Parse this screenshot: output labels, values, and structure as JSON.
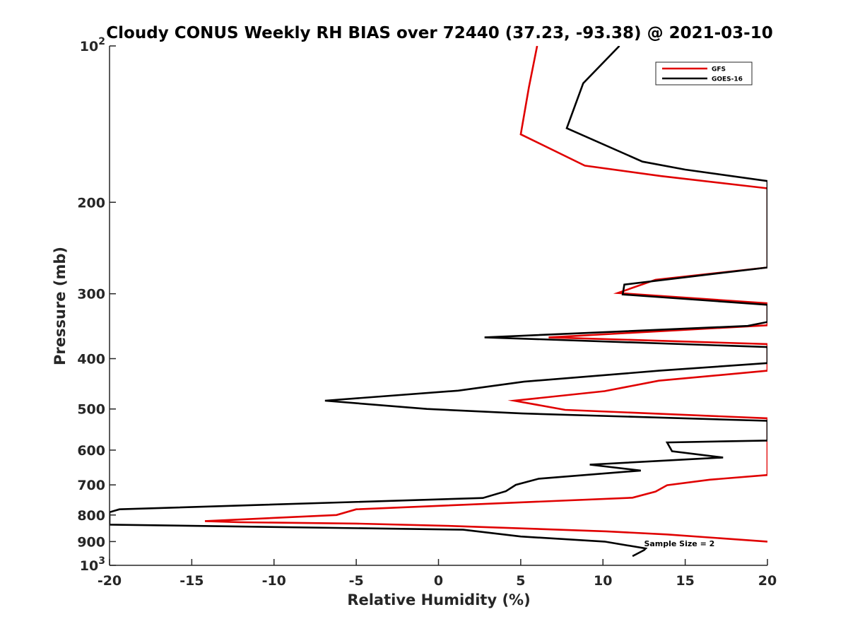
{
  "chart_data": {
    "type": "line",
    "title": "Cloudy CONUS Weekly RH BIAS over 72440 (37.23, -93.38) @ 2021-03-10",
    "xlabel": "Relative Humidity (%)",
    "ylabel": "Pressure (mb)",
    "xlim": [
      -20,
      20
    ],
    "ylim": [
      100,
      1000
    ],
    "y_scale": "log",
    "y_reversed": true,
    "grid": false,
    "legend_position": "top-right",
    "x_ticks": [
      {
        "value": -20,
        "label": "-20"
      },
      {
        "value": -15,
        "label": "-15"
      },
      {
        "value": -10,
        "label": "-10"
      },
      {
        "value": -5,
        "label": "-5"
      },
      {
        "value": 0,
        "label": "0"
      },
      {
        "value": 5,
        "label": "5"
      },
      {
        "value": 10,
        "label": "10"
      },
      {
        "value": 15,
        "label": "15"
      },
      {
        "value": 20,
        "label": "20"
      }
    ],
    "y_ticks": [
      {
        "value": 100,
        "base": "10",
        "exp": "2"
      },
      {
        "value": 200,
        "label": "200"
      },
      {
        "value": 300,
        "label": "300"
      },
      {
        "value": 400,
        "label": "400"
      },
      {
        "value": 500,
        "label": "500"
      },
      {
        "value": 600,
        "label": "600"
      },
      {
        "value": 700,
        "label": "700"
      },
      {
        "value": 800,
        "label": "800"
      },
      {
        "value": 900,
        "label": "900"
      },
      {
        "value": 1000,
        "base": "10",
        "exp": "3"
      }
    ],
    "annotation": {
      "text": "Sample Size = 2",
      "x": 12.5,
      "y": 905
    },
    "series": [
      {
        "name": "GFS",
        "color": "#e00000",
        "points": [
          [
            6.0,
            100
          ],
          [
            5.5,
            120
          ],
          [
            5.0,
            148
          ],
          [
            8.9,
            170
          ],
          [
            13.5,
            178
          ],
          [
            20,
            188
          ],
          [
            20,
            267
          ],
          [
            13.2,
            282
          ],
          [
            10.9,
            299
          ],
          [
            20,
            313
          ],
          [
            20,
            345
          ],
          [
            6.7,
            364
          ],
          [
            20,
            375
          ],
          [
            20,
            422
          ],
          [
            13.4,
            441
          ],
          [
            10.1,
            462
          ],
          [
            4.6,
            482
          ],
          [
            7.7,
            502
          ],
          [
            20,
            521
          ],
          [
            20,
            670
          ],
          [
            16.5,
            684
          ],
          [
            13.9,
            701
          ],
          [
            13.2,
            721
          ],
          [
            11.8,
            741
          ],
          [
            -5.0,
            780
          ],
          [
            -6.2,
            800
          ],
          [
            -14.2,
            822
          ],
          [
            -12.1,
            826
          ],
          [
            -5.0,
            831
          ],
          [
            0.8,
            840
          ],
          [
            10.2,
            860
          ],
          [
            13.9,
            872
          ],
          [
            20,
            900
          ]
        ]
      },
      {
        "name": "GOES-16",
        "color": "#000000",
        "points": [
          [
            11.0,
            100
          ],
          [
            8.8,
            118
          ],
          [
            7.8,
            144
          ],
          [
            12.4,
            167
          ],
          [
            15.0,
            173
          ],
          [
            20,
            182
          ],
          [
            20,
            267
          ],
          [
            11.3,
            288
          ],
          [
            11.2,
            301
          ],
          [
            20,
            315
          ],
          [
            20,
            340
          ],
          [
            18.8,
            346
          ],
          [
            2.8,
            364
          ],
          [
            20,
            380
          ],
          [
            20,
            408
          ],
          [
            13.4,
            422
          ],
          [
            5.2,
            443
          ],
          [
            1.2,
            461
          ],
          [
            -6.9,
            482
          ],
          [
            -0.7,
            500
          ],
          [
            5.1,
            510
          ],
          [
            20,
            527
          ],
          [
            20,
            575
          ],
          [
            13.9,
            580
          ],
          [
            14.2,
            603
          ],
          [
            17.3,
            620
          ],
          [
            9.2,
            640
          ],
          [
            12.3,
            657
          ],
          [
            6.1,
            681
          ],
          [
            4.7,
            700
          ],
          [
            4.1,
            720
          ],
          [
            2.7,
            742
          ],
          [
            -19.4,
            780
          ],
          [
            -20,
            790
          ],
          [
            -20,
            835
          ],
          [
            1.5,
            854
          ],
          [
            5.0,
            880
          ],
          [
            10.1,
            900
          ],
          [
            12.6,
            928
          ],
          [
            12.5,
            935
          ],
          [
            11.8,
            960
          ]
        ]
      }
    ]
  }
}
